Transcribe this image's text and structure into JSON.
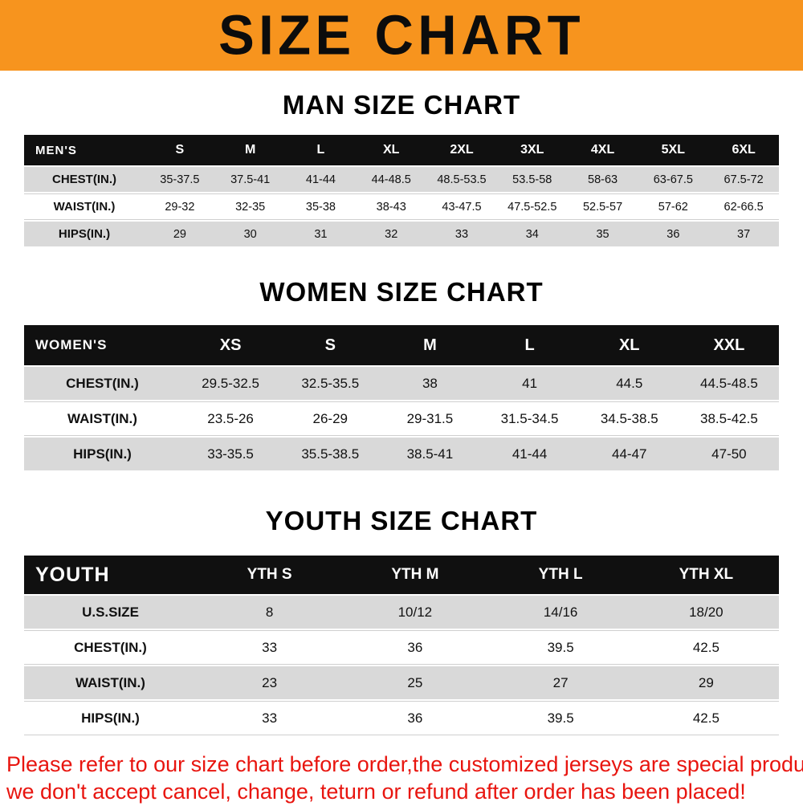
{
  "banner": {
    "title": "SIZE CHART",
    "bg_color": "#f7941e",
    "text_color": "#0c0c0c"
  },
  "sections": [
    {
      "heading": "MAN SIZE CHART",
      "table": {
        "header_label": "MEN'S",
        "columns": [
          "S",
          "M",
          "L",
          "XL",
          "2XL",
          "3XL",
          "4XL",
          "5XL",
          "6XL"
        ],
        "rows": [
          {
            "label": "CHEST(IN.)",
            "values": [
              "35-37.5",
              "37.5-41",
              "41-44",
              "44-48.5",
              "48.5-53.5",
              "53.5-58",
              "58-63",
              "63-67.5",
              "67.5-72"
            ]
          },
          {
            "label": "WAIST(IN.)",
            "values": [
              "29-32",
              "32-35",
              "35-38",
              "38-43",
              "43-47.5",
              "47.5-52.5",
              "52.5-57",
              "57-62",
              "62-66.5"
            ]
          },
          {
            "label": "HIPS(IN.)",
            "values": [
              "29",
              "30",
              "31",
              "32",
              "33",
              "34",
              "35",
              "36",
              "37"
            ]
          }
        ]
      }
    },
    {
      "heading": "WOMEN SIZE CHART",
      "table": {
        "header_label": "WOMEN'S",
        "columns": [
          "XS",
          "S",
          "M",
          "L",
          "XL",
          "XXL"
        ],
        "rows": [
          {
            "label": "CHEST(IN.)",
            "values": [
              "29.5-32.5",
              "32.5-35.5",
              "38",
              "41",
              "44.5",
              "44.5-48.5"
            ]
          },
          {
            "label": "WAIST(IN.)",
            "values": [
              "23.5-26",
              "26-29",
              "29-31.5",
              "31.5-34.5",
              "34.5-38.5",
              "38.5-42.5"
            ]
          },
          {
            "label": "HIPS(IN.)",
            "values": [
              "33-35.5",
              "35.5-38.5",
              "38.5-41",
              "41-44",
              "44-47",
              "47-50"
            ]
          }
        ]
      }
    },
    {
      "heading": "YOUTH SIZE CHART",
      "table": {
        "header_label": "YOUTH",
        "columns": [
          "YTH S",
          "YTH M",
          "YTH L",
          "YTH XL"
        ],
        "rows": [
          {
            "label": "U.S.SIZE",
            "values": [
              "8",
              "10/12",
              "14/16",
              "18/20"
            ]
          },
          {
            "label": "CHEST(IN.)",
            "values": [
              "33",
              "36",
              "39.5",
              "42.5"
            ]
          },
          {
            "label": "WAIST(IN.)",
            "values": [
              "23",
              "25",
              "27",
              "29"
            ]
          },
          {
            "label": "HIPS(IN.)",
            "values": [
              "33",
              "36",
              "39.5",
              "42.5"
            ]
          }
        ]
      }
    }
  ],
  "footer": {
    "color": "#e8150f",
    "lines": [
      "Please refer to our size chart before order,the customized jerseys are special products,",
      "we don't accept cancel, change, teturn or refund after order has been placed!"
    ]
  }
}
